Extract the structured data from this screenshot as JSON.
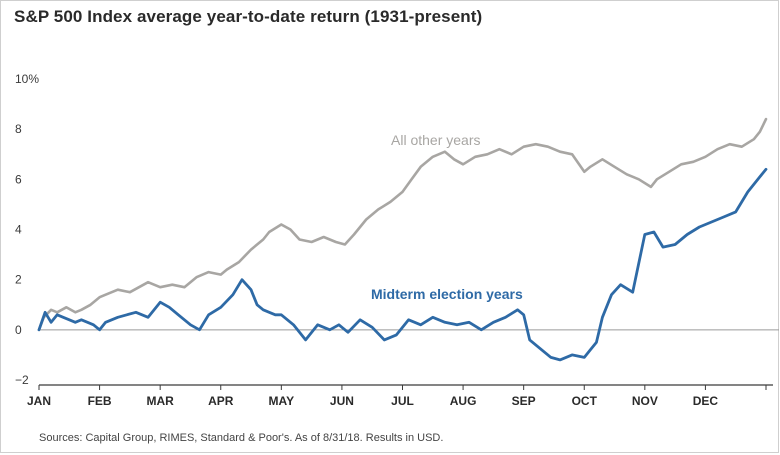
{
  "title": "S&P 500 Index average year-to-date return (1931-present)",
  "source": "Sources: Capital Group, RIMES, Standard & Poor's. As of 8/31/18. Results in USD.",
  "chart_data": {
    "type": "line",
    "title": "S&P 500 Index average year-to-date return (1931-present)",
    "xlabel": "",
    "ylabel": "",
    "ylim": [
      -2,
      10
    ],
    "xlim": [
      0,
      12
    ],
    "y_ticks": [
      {
        "value": -2,
        "label": "−2"
      },
      {
        "value": 0,
        "label": "0"
      },
      {
        "value": 2,
        "label": "2"
      },
      {
        "value": 4,
        "label": "4"
      },
      {
        "value": 6,
        "label": "6"
      },
      {
        "value": 8,
        "label": "8"
      },
      {
        "value": 10,
        "label": "10%"
      }
    ],
    "x_ticks": [
      "JAN",
      "FEB",
      "MAR",
      "APR",
      "MAY",
      "JUN",
      "JUL",
      "AUG",
      "SEP",
      "OCT",
      "NOV",
      "DEC"
    ],
    "grid": false,
    "series": [
      {
        "name": "All other years",
        "color": "#a8a6a3",
        "x": [
          0,
          0.08,
          0.2,
          0.3,
          0.45,
          0.6,
          0.7,
          0.85,
          1.0,
          1.1,
          1.3,
          1.5,
          1.65,
          1.8,
          2.0,
          2.2,
          2.4,
          2.6,
          2.8,
          3.0,
          3.1,
          3.3,
          3.5,
          3.7,
          3.8,
          4.0,
          4.15,
          4.3,
          4.5,
          4.7,
          4.9,
          5.05,
          5.2,
          5.4,
          5.6,
          5.8,
          6.0,
          6.15,
          6.3,
          6.5,
          6.7,
          6.85,
          7.0,
          7.2,
          7.4,
          7.6,
          7.8,
          8.0,
          8.2,
          8.4,
          8.6,
          8.8,
          9.0,
          9.1,
          9.3,
          9.5,
          9.7,
          9.9,
          10.1,
          10.2,
          10.4,
          10.6,
          10.8,
          11.0,
          11.2,
          11.4,
          11.6,
          11.8,
          11.9,
          12.0
        ],
        "y": [
          0,
          0.5,
          0.8,
          0.7,
          0.9,
          0.7,
          0.8,
          1.0,
          1.3,
          1.4,
          1.6,
          1.5,
          1.7,
          1.9,
          1.7,
          1.8,
          1.7,
          2.1,
          2.3,
          2.2,
          2.4,
          2.7,
          3.2,
          3.6,
          3.9,
          4.2,
          4.0,
          3.6,
          3.5,
          3.7,
          3.5,
          3.4,
          3.8,
          4.4,
          4.8,
          5.1,
          5.5,
          6.0,
          6.5,
          6.9,
          7.1,
          6.8,
          6.6,
          6.9,
          7.0,
          7.2,
          7.0,
          7.3,
          7.4,
          7.3,
          7.1,
          7.0,
          6.3,
          6.5,
          6.8,
          6.5,
          6.2,
          6.0,
          5.7,
          6.0,
          6.3,
          6.6,
          6.7,
          6.9,
          7.2,
          7.4,
          7.3,
          7.6,
          7.9,
          8.4
        ]
      },
      {
        "name": "Midterm election years",
        "color": "#2e6aa6",
        "x": [
          0,
          0.1,
          0.2,
          0.3,
          0.4,
          0.5,
          0.6,
          0.7,
          0.8,
          0.9,
          1.0,
          1.1,
          1.3,
          1.45,
          1.6,
          1.8,
          2.0,
          2.15,
          2.3,
          2.5,
          2.65,
          2.8,
          3.0,
          3.2,
          3.35,
          3.5,
          3.6,
          3.7,
          3.8,
          3.9,
          4.0,
          4.2,
          4.4,
          4.6,
          4.8,
          4.95,
          5.1,
          5.3,
          5.5,
          5.7,
          5.9,
          6.1,
          6.3,
          6.5,
          6.7,
          6.9,
          7.1,
          7.3,
          7.5,
          7.7,
          7.9,
          8.0,
          8.1,
          8.3,
          8.45,
          8.6,
          8.8,
          9.0,
          9.1,
          9.2,
          9.3,
          9.45,
          9.6,
          9.8,
          10.0,
          10.15,
          10.3,
          10.5,
          10.7,
          10.9,
          11.1,
          11.3,
          11.5,
          11.7,
          11.9,
          12.0
        ],
        "y": [
          0,
          0.7,
          0.3,
          0.6,
          0.5,
          0.4,
          0.3,
          0.4,
          0.3,
          0.2,
          0.0,
          0.3,
          0.5,
          0.6,
          0.7,
          0.5,
          1.1,
          0.9,
          0.6,
          0.2,
          0.0,
          0.6,
          0.9,
          1.4,
          2.0,
          1.6,
          1.0,
          0.8,
          0.7,
          0.6,
          0.6,
          0.2,
          -0.4,
          0.2,
          0.0,
          0.2,
          -0.1,
          0.4,
          0.1,
          -0.4,
          -0.2,
          0.4,
          0.2,
          0.5,
          0.3,
          0.2,
          0.3,
          0.0,
          0.3,
          0.5,
          0.8,
          0.6,
          -0.4,
          -0.8,
          -1.1,
          -1.2,
          -1.0,
          -1.1,
          -0.8,
          -0.5,
          0.5,
          1.4,
          1.8,
          1.5,
          3.8,
          3.9,
          3.3,
          3.4,
          3.8,
          4.1,
          4.3,
          4.5,
          4.7,
          5.5,
          6.1,
          6.4
        ]
      }
    ],
    "annotations": [
      {
        "text": "All other years",
        "series": "All other years"
      },
      {
        "text": "Midterm election years",
        "series": "Midterm election years"
      }
    ]
  }
}
